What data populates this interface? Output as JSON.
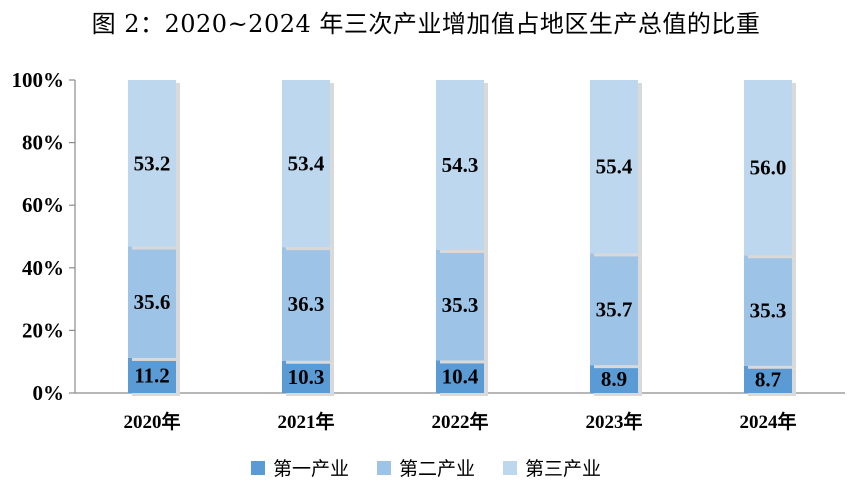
{
  "chart_data": {
    "type": "bar",
    "stacked": true,
    "title": "图 2：2020~2024 年三次产业增加值占地区生产总值的比重",
    "categories": [
      "2020年",
      "2021年",
      "2022年",
      "2023年",
      "2024年"
    ],
    "series": [
      {
        "name": "第一产业",
        "values": [
          11.2,
          10.3,
          10.4,
          8.9,
          8.7
        ],
        "color": "#5B9BD5"
      },
      {
        "name": "第二产业",
        "values": [
          35.6,
          36.3,
          35.3,
          35.7,
          35.3
        ],
        "color": "#9DC3E6"
      },
      {
        "name": "第三产业",
        "values": [
          53.2,
          53.4,
          54.3,
          55.4,
          56.0
        ],
        "color": "#BDD7EE"
      }
    ],
    "ylim": [
      0,
      100
    ],
    "yticks": [
      "0%",
      "20%",
      "40%",
      "60%",
      "80%",
      "100%"
    ],
    "legend": "bottom",
    "grid": false
  }
}
